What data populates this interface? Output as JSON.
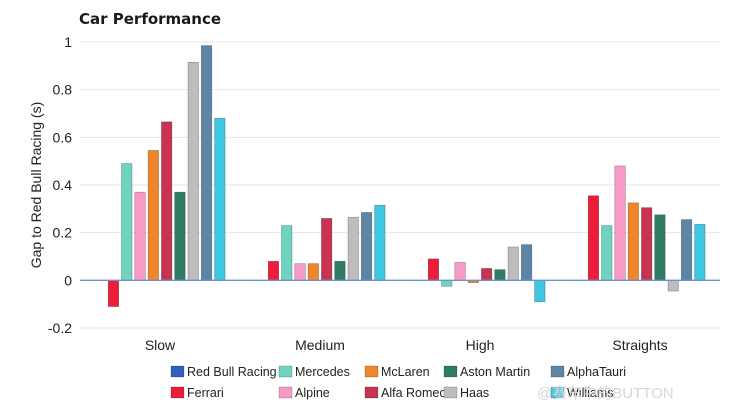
{
  "chart_data": {
    "type": "bar",
    "title": "Car Performance",
    "xlabel": "",
    "ylabel": "Gap to Red Bull Racing (s)",
    "ylim": [
      -0.2,
      1.0
    ],
    "yticks": [
      "-0.2",
      "0",
      "0.2",
      "0.4",
      "0.6",
      "0.8",
      "1"
    ],
    "grid": true,
    "legend_position": "bottom",
    "categories": [
      "Slow",
      "Medium",
      "High",
      "Straights"
    ],
    "series": [
      {
        "name": "Red Bull Racing",
        "color": "#2f5fc4",
        "values": [
          0,
          0,
          0,
          0
        ]
      },
      {
        "name": "Ferrari",
        "color": "#ee1c3b",
        "values": [
          -0.11,
          0.08,
          0.09,
          0.355
        ]
      },
      {
        "name": "Mercedes",
        "color": "#6fd3bf",
        "values": [
          0.49,
          0.23,
          -0.025,
          0.23
        ]
      },
      {
        "name": "Alpine",
        "color": "#f79ac5",
        "values": [
          0.37,
          0.07,
          0.075,
          0.48
        ]
      },
      {
        "name": "McLaren",
        "color": "#f0862c",
        "values": [
          0.545,
          0.07,
          -0.01,
          0.325
        ]
      },
      {
        "name": "Alfa Romeo",
        "color": "#c8334f",
        "values": [
          0.665,
          0.26,
          0.05,
          0.305
        ]
      },
      {
        "name": "Aston Martin",
        "color": "#2e7c63",
        "values": [
          0.37,
          0.08,
          0.045,
          0.275
        ]
      },
      {
        "name": "Haas",
        "color": "#bdbdbd",
        "values": [
          0.915,
          0.265,
          0.14,
          -0.045
        ]
      },
      {
        "name": "AlphaTauri",
        "color": "#5c86a8",
        "values": [
          0.985,
          0.285,
          0.15,
          0.255
        ]
      },
      {
        "name": "Williams",
        "color": "#3ec6e3",
        "values": [
          0.68,
          0.315,
          -0.09,
          0.235
        ]
      }
    ],
    "legend_rows": [
      [
        "Red Bull Racing",
        "Mercedes",
        "McLaren",
        "Aston Martin",
        "AlphaTauri"
      ],
      [
        "Ferrari",
        "Alpine",
        "Alfa Romeo",
        "Haas",
        "Williams"
      ]
    ]
  },
  "watermark": "@赛车中的BUTTON"
}
